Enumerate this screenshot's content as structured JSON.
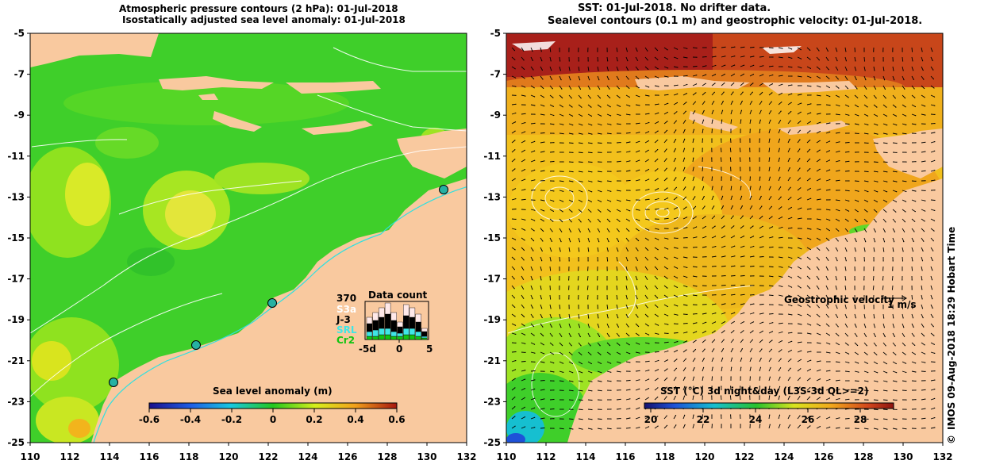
{
  "left_title": {
    "line1": "Atmospheric pressure contours (2 hPa): 01-Jul-2018",
    "line2": "Isostatically adjusted sea level anomaly: 01-Jul-2018"
  },
  "right_title": {
    "line1": "SST: 01-Jul-2018. No drifter data.",
    "line2": "Sealevel contours (0.1 m) and geostrophic velocity: 01-Jul-2018."
  },
  "y_ticks": [
    "-5",
    "-7",
    "-9",
    "-11",
    "-13",
    "-15",
    "-17",
    "-19",
    "-21",
    "-23",
    "-25"
  ],
  "x_ticks": [
    "110",
    "112",
    "114",
    "116",
    "118",
    "120",
    "122",
    "124",
    "126",
    "128",
    "130",
    "132"
  ],
  "sla_colorbar": {
    "label": "Sea level anomaly (m)",
    "ticks": [
      "-0.6",
      "-0.4",
      "-0.2",
      "0",
      "0.2",
      "0.4",
      "0.6"
    ]
  },
  "sst_colorbar": {
    "label": "SST (°C) 3d night&day (L3S-3d QL>=2)",
    "ticks": [
      "20",
      "22",
      "24",
      "26",
      "28"
    ]
  },
  "data_count": {
    "title": "Data count",
    "max_value": "370",
    "series": [
      {
        "name": "S3a",
        "color": "#ffe9e9"
      },
      {
        "name": "J-3",
        "color": "#000000"
      },
      {
        "name": "SRL",
        "color": "#3fe6e6"
      },
      {
        "name": "Cr2",
        "color": "#11c411"
      }
    ],
    "x_ticks": [
      "-5d",
      "0",
      "5"
    ]
  },
  "velocity_legend": {
    "label": "Geostrophic velocity",
    "scale": "1 m/s"
  },
  "credit": {
    "symbol": "©",
    "text": "IMOS 09-Aug-2018 18:29 Hobart Time"
  },
  "colors": {
    "land": "#f9c99f",
    "sla_base": "#3fcf2a",
    "sst_base": "#f2c01c",
    "contour": "#ffffff"
  }
}
